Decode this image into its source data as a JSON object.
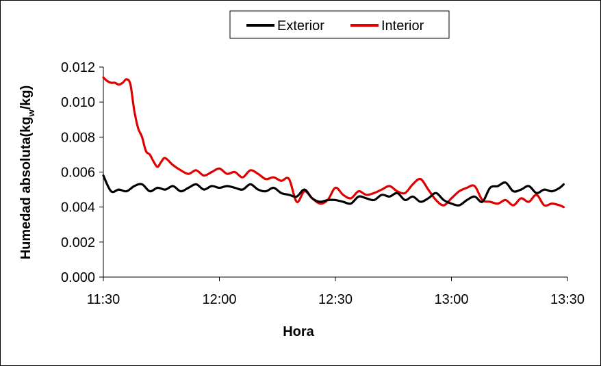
{
  "chart_data": {
    "type": "line",
    "title": "",
    "xlabel": "Hora",
    "ylabel": {
      "main": "Humedad absoluta(kg",
      "sub": "w",
      "tail": "/kg)"
    },
    "x_ticks": [
      "11:30",
      "12:00",
      "12:30",
      "13:00",
      "13:30"
    ],
    "y_ticks": [
      "0.000",
      "0.002",
      "0.004",
      "0.006",
      "0.008",
      "0.010",
      "0.012"
    ],
    "xlim": [
      "11:30",
      "13:30"
    ],
    "ylim": [
      0,
      0.012
    ],
    "grid": false,
    "legend": "top",
    "series": [
      {
        "name": "Exterior",
        "color": "#000000",
        "x": [
          "11:30",
          "11:32",
          "11:34",
          "11:36",
          "11:38",
          "11:40",
          "11:42",
          "11:44",
          "11:46",
          "11:48",
          "11:50",
          "11:52",
          "11:54",
          "11:56",
          "11:58",
          "12:00",
          "12:02",
          "12:04",
          "12:06",
          "12:08",
          "12:10",
          "12:12",
          "12:14",
          "12:16",
          "12:18",
          "12:20",
          "12:22",
          "12:24",
          "12:26",
          "12:28",
          "12:30",
          "12:32",
          "12:34",
          "12:36",
          "12:38",
          "12:40",
          "12:42",
          "12:44",
          "12:46",
          "12:48",
          "12:50",
          "12:52",
          "12:54",
          "12:56",
          "12:58",
          "13:00",
          "13:02",
          "13:04",
          "13:06",
          "13:08",
          "13:10",
          "13:12",
          "13:14",
          "13:16",
          "13:18",
          "13:20",
          "13:22",
          "13:24",
          "13:26",
          "13:28",
          "13:29"
        ],
        "values": [
          0.0058,
          0.0049,
          0.005,
          0.0049,
          0.0052,
          0.0053,
          0.0049,
          0.0051,
          0.005,
          0.0052,
          0.0049,
          0.0051,
          0.0053,
          0.005,
          0.0052,
          0.0051,
          0.0052,
          0.0051,
          0.005,
          0.0053,
          0.005,
          0.0049,
          0.0051,
          0.0048,
          0.0047,
          0.0046,
          0.005,
          0.0045,
          0.0043,
          0.0044,
          0.0044,
          0.0043,
          0.0042,
          0.0046,
          0.0045,
          0.0044,
          0.0047,
          0.0046,
          0.0048,
          0.0044,
          0.0046,
          0.0043,
          0.0045,
          0.0048,
          0.0044,
          0.0042,
          0.0041,
          0.0044,
          0.0046,
          0.0043,
          0.0051,
          0.0052,
          0.0054,
          0.0049,
          0.005,
          0.0052,
          0.0048,
          0.005,
          0.0049,
          0.0051,
          0.0053
        ]
      },
      {
        "name": "Interior",
        "color": "#e00000",
        "x": [
          "11:30",
          "11:31",
          "11:32",
          "11:33",
          "11:34",
          "11:35",
          "11:36",
          "11:37",
          "11:38",
          "11:39",
          "11:40",
          "11:41",
          "11:42",
          "11:43",
          "11:44",
          "11:45",
          "11:46",
          "11:48",
          "11:50",
          "11:52",
          "11:54",
          "11:56",
          "11:58",
          "12:00",
          "12:02",
          "12:04",
          "12:06",
          "12:08",
          "12:10",
          "12:12",
          "12:14",
          "12:16",
          "12:18",
          "12:20",
          "12:22",
          "12:24",
          "12:26",
          "12:28",
          "12:30",
          "12:32",
          "12:34",
          "12:36",
          "12:38",
          "12:40",
          "12:42",
          "12:44",
          "12:46",
          "12:48",
          "12:50",
          "12:52",
          "12:54",
          "12:56",
          "12:58",
          "13:00",
          "13:02",
          "13:04",
          "13:06",
          "13:08",
          "13:10",
          "13:12",
          "13:14",
          "13:16",
          "13:18",
          "13:20",
          "13:22",
          "13:24",
          "13:26",
          "13:28",
          "13:29"
        ],
        "values": [
          0.0114,
          0.0112,
          0.0111,
          0.0111,
          0.011,
          0.0111,
          0.0113,
          0.011,
          0.0095,
          0.0085,
          0.008,
          0.0072,
          0.007,
          0.0066,
          0.0063,
          0.0066,
          0.0068,
          0.0064,
          0.0061,
          0.0059,
          0.0061,
          0.0058,
          0.006,
          0.0062,
          0.0059,
          0.006,
          0.0057,
          0.0061,
          0.0059,
          0.0056,
          0.0057,
          0.0055,
          0.0056,
          0.0043,
          0.0049,
          0.0045,
          0.0042,
          0.0044,
          0.0051,
          0.0047,
          0.0045,
          0.0049,
          0.0047,
          0.0048,
          0.005,
          0.0052,
          0.0049,
          0.0048,
          0.0053,
          0.0056,
          0.005,
          0.0044,
          0.0041,
          0.0045,
          0.0049,
          0.0051,
          0.0052,
          0.0044,
          0.0043,
          0.0042,
          0.0044,
          0.0041,
          0.0045,
          0.0043,
          0.0047,
          0.0041,
          0.0042,
          0.0041,
          0.004
        ]
      }
    ]
  }
}
